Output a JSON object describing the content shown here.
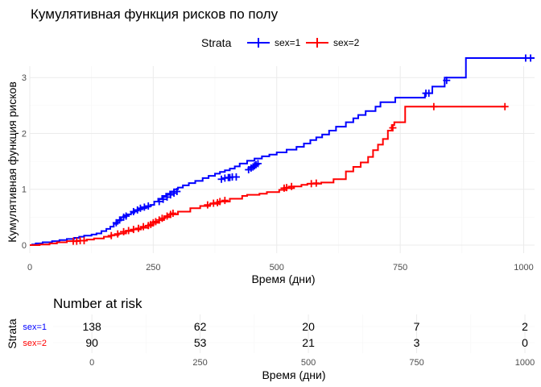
{
  "chart_data": [
    {
      "type": "line",
      "step": true,
      "title": "Кумулятивная функция рисков по полу",
      "xlabel": "Время (дни)",
      "ylabel": "Кумулятивная функция рисков",
      "xlim": [
        0,
        1022
      ],
      "ylim": [
        0,
        3.35
      ],
      "xticks": [
        0,
        250,
        500,
        750,
        1000
      ],
      "yticks": [
        0,
        1,
        2,
        3
      ],
      "grid": true,
      "legend": {
        "title": "Strata",
        "position": "top"
      },
      "series": [
        {
          "name": "sex=1",
          "color": "#0000ff",
          "x": [
            0,
            5,
            12,
            26,
            45,
            60,
            75,
            90,
            100,
            110,
            125,
            135,
            145,
            155,
            163,
            170,
            178,
            185,
            192,
            198,
            205,
            212,
            220,
            228,
            236,
            244,
            252,
            260,
            268,
            276,
            284,
            292,
            300,
            310,
            322,
            335,
            350,
            362,
            375,
            385,
            395,
            405,
            415,
            425,
            440,
            455,
            470,
            485,
            500,
            520,
            540,
            555,
            568,
            580,
            592,
            606,
            620,
            640,
            655,
            665,
            680,
            700,
            710,
            740,
            800,
            815,
            840,
            883,
            1022
          ],
          "y": [
            0,
            0.01,
            0.03,
            0.05,
            0.07,
            0.09,
            0.11,
            0.13,
            0.15,
            0.17,
            0.19,
            0.21,
            0.25,
            0.29,
            0.33,
            0.38,
            0.44,
            0.5,
            0.53,
            0.55,
            0.58,
            0.62,
            0.64,
            0.66,
            0.69,
            0.72,
            0.78,
            0.83,
            0.88,
            0.92,
            0.96,
            1.0,
            1.03,
            1.07,
            1.11,
            1.15,
            1.2,
            1.24,
            1.28,
            1.31,
            1.34,
            1.37,
            1.41,
            1.46,
            1.51,
            1.55,
            1.59,
            1.62,
            1.66,
            1.71,
            1.76,
            1.82,
            1.88,
            1.93,
            1.98,
            2.05,
            2.12,
            2.2,
            2.27,
            2.33,
            2.4,
            2.48,
            2.56,
            2.64,
            2.72,
            2.84,
            3.0,
            3.35,
            3.35
          ],
          "censor_x": [
            175,
            182,
            190,
            195,
            210,
            218,
            224,
            232,
            240,
            262,
            270,
            278,
            285,
            292,
            298,
            388,
            395,
            402,
            405,
            410,
            418,
            443,
            448,
            452,
            455,
            458,
            462,
            802,
            808,
            844,
            1004,
            1014
          ],
          "censor_y": [
            0.4,
            0.45,
            0.5,
            0.52,
            0.6,
            0.63,
            0.66,
            0.68,
            0.7,
            0.78,
            0.82,
            0.86,
            0.9,
            0.93,
            0.96,
            1.18,
            1.2,
            1.21,
            1.21,
            1.22,
            1.22,
            1.35,
            1.38,
            1.4,
            1.42,
            1.44,
            1.46,
            2.72,
            2.72,
            2.95,
            3.35,
            3.35
          ]
        },
        {
          "name": "sex=2",
          "color": "#ff0000",
          "x": [
            0,
            20,
            40,
            55,
            75,
            95,
            115,
            130,
            150,
            165,
            180,
            195,
            210,
            225,
            240,
            250,
            262,
            272,
            285,
            300,
            325,
            345,
            365,
            385,
            405,
            430,
            440,
            465,
            480,
            505,
            520,
            535,
            550,
            562,
            575,
            590,
            615,
            640,
            655,
            670,
            685,
            695,
            705,
            715,
            725,
            733,
            738,
            760,
            960
          ],
          "y": [
            0,
            0.01,
            0.03,
            0.05,
            0.07,
            0.08,
            0.1,
            0.12,
            0.15,
            0.18,
            0.21,
            0.25,
            0.28,
            0.31,
            0.35,
            0.4,
            0.45,
            0.5,
            0.55,
            0.6,
            0.66,
            0.7,
            0.74,
            0.78,
            0.83,
            0.88,
            0.9,
            0.92,
            0.95,
            0.99,
            1.02,
            1.05,
            1.08,
            1.1,
            1.1,
            1.12,
            1.18,
            1.32,
            1.4,
            1.48,
            1.58,
            1.7,
            1.8,
            1.9,
            2.05,
            2.15,
            2.2,
            2.48,
            2.48
          ],
          "censor_x": [
            88,
            95,
            102,
            110,
            165,
            178,
            190,
            200,
            210,
            220,
            230,
            240,
            245,
            250,
            255,
            262,
            268,
            278,
            285,
            290,
            360,
            372,
            380,
            385,
            395,
            515,
            520,
            530,
            570,
            580,
            735,
            818,
            962
          ],
          "censor_y": [
            0.07,
            0.07,
            0.08,
            0.08,
            0.17,
            0.2,
            0.24,
            0.26,
            0.28,
            0.3,
            0.33,
            0.35,
            0.37,
            0.4,
            0.42,
            0.45,
            0.48,
            0.52,
            0.55,
            0.57,
            0.72,
            0.75,
            0.76,
            0.78,
            0.8,
            1.02,
            1.03,
            1.05,
            1.1,
            1.11,
            2.1,
            2.48,
            2.48
          ]
        }
      ]
    },
    {
      "type": "table",
      "title": "Number at risk",
      "ylabel": "Strata",
      "xlabel": "Время (дни)",
      "x": [
        0,
        250,
        500,
        750,
        1000
      ],
      "rows": [
        {
          "name": "sex=1",
          "color": "#0000ff",
          "values": [
            138,
            62,
            20,
            7,
            2
          ]
        },
        {
          "name": "sex=2",
          "color": "#ff0000",
          "values": [
            90,
            53,
            21,
            3,
            0
          ]
        }
      ]
    }
  ],
  "colors": {
    "grid_major": "#ebebeb",
    "grid_minor": "#f5f5f5",
    "axis_text": "#4d4d4d"
  }
}
